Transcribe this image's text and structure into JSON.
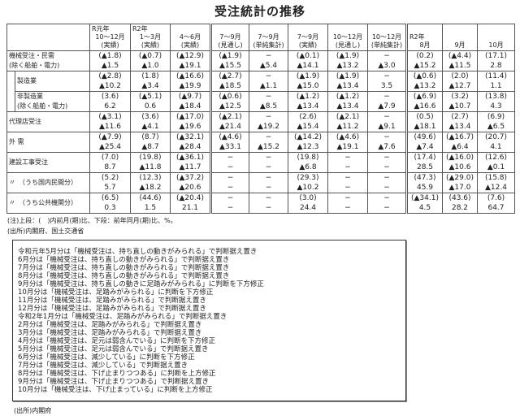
{
  "title": "受注統計の推移",
  "columns": [
    {
      "year": "R元年",
      "period": "10〜12月",
      "kind": "(実績)"
    },
    {
      "year": "R2年",
      "period": "1〜3月",
      "kind": "(実績)"
    },
    {
      "year": "",
      "period": "4〜6月",
      "kind": "(実績)"
    },
    {
      "year": "",
      "period": "7〜9月",
      "kind": "(見通し)"
    },
    {
      "year": "",
      "period": "7〜9月",
      "kind": "(単純集計)"
    },
    {
      "year": "",
      "period": "7〜9月",
      "kind": "(実績)"
    },
    {
      "year": "",
      "period": "10〜12月",
      "kind": "(見通し)"
    },
    {
      "year": "",
      "period": "10〜12月",
      "kind": "(単純集計)"
    },
    {
      "year": "R2年",
      "period": "8月",
      "kind": ""
    },
    {
      "year": "",
      "period": "9月",
      "kind": ""
    },
    {
      "year": "",
      "period": "10月",
      "kind": ""
    }
  ],
  "rows": [
    {
      "label": "機械受注・民需",
      "label2": "(除く船舶・電力)",
      "indent": false,
      "top": [
        "(▲1.8)",
        "(▲0.7)",
        "(▲12.9)",
        "(▲1.9)",
        "−",
        "(▲0.1)",
        "(▲1.9)",
        "−",
        "(0.2)",
        "(▲4.4)",
        "(17.1)"
      ],
      "bottom": [
        "▲1.5",
        "▲1.0",
        "▲19.1",
        "▲15.5",
        "▲5.4",
        "▲14.1",
        "▲13.2",
        "▲3.0",
        "▲15.2",
        "▲11.5",
        "2.8"
      ]
    },
    {
      "label": "製造業",
      "label2": "",
      "indent": true,
      "top": [
        "(▲2.8)",
        "(1.8)",
        "(▲16.6)",
        "(▲2.7)",
        "−",
        "(▲1.9)",
        "(▲1.9)",
        "−",
        "(▲0.6)",
        "(2.0)",
        "(11.4)"
      ],
      "bottom": [
        "▲10.2",
        "▲3.4",
        "▲19.9",
        "▲18.5",
        "▲1.1",
        "▲15.0",
        "▲13.4",
        "3.5",
        "▲13.2",
        "▲12.7",
        "1.1"
      ]
    },
    {
      "label": "非製造業",
      "label2": "(除く船舶・電力)",
      "indent": true,
      "top": [
        "(3.6)",
        "(▲5.1)",
        "(▲9.7)",
        "(▲0.6)",
        "−",
        "(▲1.2)",
        "(▲1.2)",
        "−",
        "(▲6.9)",
        "(3.2)",
        "(13.8)"
      ],
      "bottom": [
        "6.2",
        "0.6",
        "▲18.4",
        "▲12.5",
        "▲8.5",
        "▲13.4",
        "▲13.4",
        "▲7.9",
        "▲16.6",
        "▲10.7",
        "4.3"
      ]
    },
    {
      "label": "代理店受注",
      "label2": "",
      "indent": false,
      "top": [
        "(▲3.1)",
        "(3.6)",
        "(▲17.0)",
        "(▲2.1)",
        "−",
        "(2.6)",
        "(▲2.1)",
        "−",
        "(0.5)",
        "(2.7)",
        "(6.9)"
      ],
      "bottom": [
        "▲11.6",
        "▲4.1",
        "▲19.6",
        "▲21.4",
        "▲19.2",
        "▲15.4",
        "▲11.2",
        "▲9.1",
        "▲18.1",
        "▲13.4",
        "▲6.5"
      ]
    },
    {
      "label": "外 需",
      "label2": "",
      "indent": false,
      "top": [
        "(▲7.9)",
        "(8.7)",
        "(▲32.1)",
        "(▲4.6)",
        "−",
        "(▲14.2)",
        "(▲4.6)",
        "−",
        "(49.6)",
        "(▲16.7)",
        "(20.7)"
      ],
      "bottom": [
        "▲25.4",
        "▲8.7",
        "▲28.4",
        "▲33.1",
        "▲15.2",
        "▲12.3",
        "▲19.1",
        "▲7.6",
        "▲7.4",
        "▲6.4",
        "4.1"
      ]
    },
    {
      "label": "建設工事受注",
      "label2": "",
      "indent": false,
      "top": [
        "(7.0)",
        "(19.8)",
        "(▲36.1)",
        "−",
        "−",
        "(19.8)",
        "−",
        "−",
        "(17.4)",
        "(▲16.0)",
        "(12.6)"
      ],
      "bottom": [
        "8.7",
        "▲11.8",
        "▲11.7",
        "−",
        "−",
        "▲6.8",
        "−",
        "−",
        "28.5",
        "▲10.6",
        "▲0.1"
      ]
    },
    {
      "label": "〃　（うち国内民間分）",
      "label2": "",
      "indent": false,
      "top": [
        "(5.2)",
        "(12.3)",
        "(▲37.2)",
        "−",
        "−",
        "(29.3)",
        "−",
        "−",
        "(47.3)",
        "(▲29.0)",
        "(15.8)"
      ],
      "bottom": [
        "5.7",
        "▲18.2",
        "▲20.6",
        "−",
        "−",
        "▲10.2",
        "−",
        "−",
        "45.9",
        "▲17.0",
        "▲12.4"
      ]
    },
    {
      "label": "〃　（うち公共機関分）",
      "label2": "",
      "indent": false,
      "top": [
        "(6.5)",
        "(44.6)",
        "(▲20.4)",
        "−",
        "−",
        "(3.0)",
        "−",
        "−",
        "(▲34.1)",
        "(43.6)",
        "(7.6)"
      ],
      "bottom": [
        "0.3",
        "1.5",
        "21.1",
        "−",
        "−",
        "24.4",
        "−",
        "−",
        "4.5",
        "28.2",
        "64.7"
      ]
    }
  ],
  "note": "(注)上段：(　)内前月(期)比、下段：前年同月(期)比、%。",
  "source1": "(出所)内閣府、国土交通省",
  "judgments": [
    "令和元年5月分は「機械受注は、持ち直しの動きがみられる」で判断据え置き",
    "6月分は「機械受注は、持ち直しの動きがみられる」で判断据え置き",
    "7月分は「機械受注は、持ち直しの動きがみられる」で判断据え置き",
    "8月分は「機械受注は、持ち直しの動きがみられる」で判断据え置き",
    "9月分は「機械受注は、持ち直しの動きに足踏みがみられる」に判断を下方修正",
    "10月分は「機械受注は、足踏みがみられる」に判断を下方修正",
    "11月分は「機械受注は、足踏みがみられる」で判断据え置き",
    "12月分は「機械受注は、足踏みがみられる」で判断据え置き",
    "令和2年1月分は「機械受注は、足踏みがみられる」で判断据え置き",
    "2月分は「機械受注は、足踏みがみられる」で判断据え置き",
    "3月分は「機械受注は、足踏みがみられる」で判断据え置き",
    "4月分は「機械受注は、足元は弱含んでいる」に判断を下方修正",
    "5月分は「機械受注は、足元は弱含んでいる」で判断据え置き",
    "6月分は「機械受注は、減少している」に判断を下方修正",
    "7月分は「機械受注は、減少している」で判断据え置き",
    "8月分は「機械受注は、下げ止まりつつある」に判断を上方修正",
    "9月分は「機械受注は、下げ止まりつつある」で判断据え置き",
    "10月分は「機械受注は、下げ止まっている」に判断を上方修正"
  ],
  "source2": "(出所)内閣府"
}
